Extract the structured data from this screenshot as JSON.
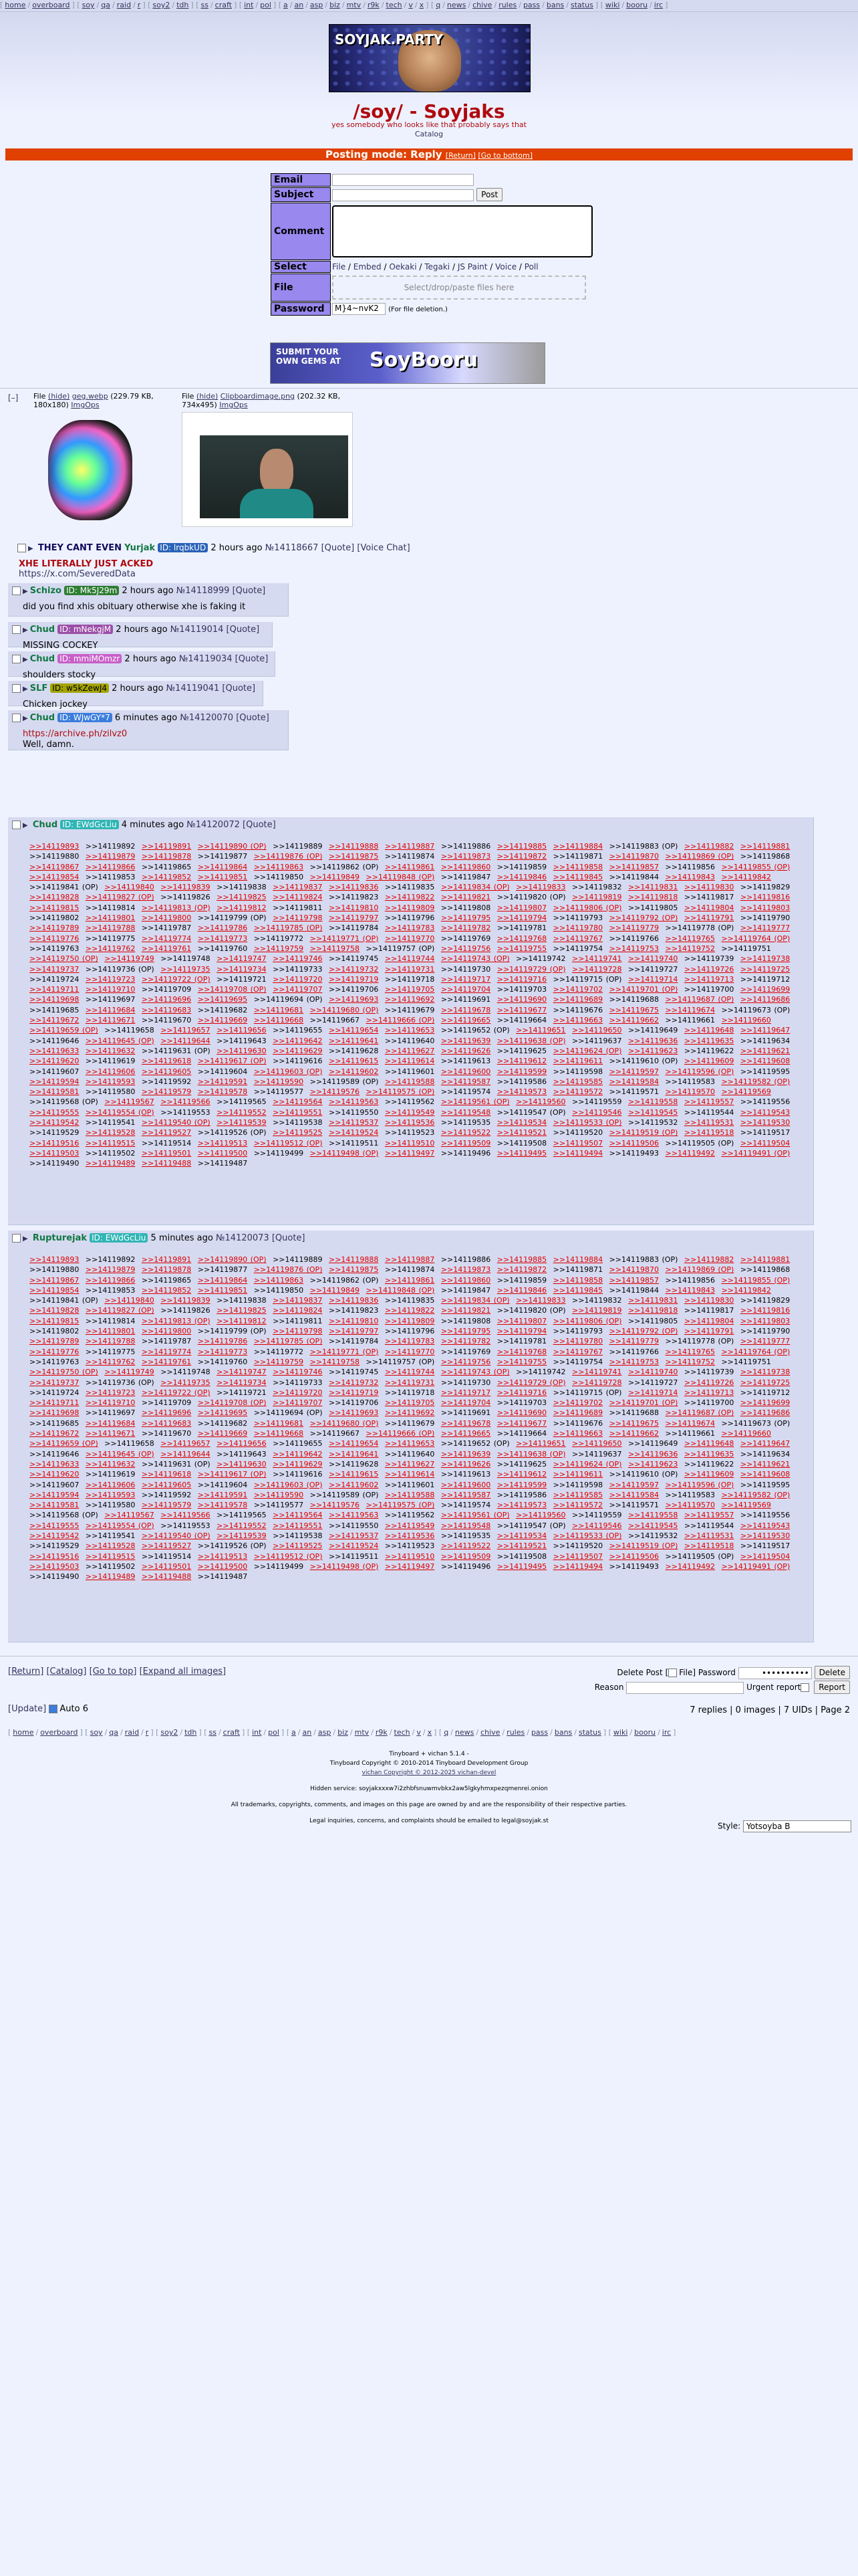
{
  "topbar": {
    "groups": [
      [
        "home",
        "overboard"
      ],
      [
        "soy",
        "qa",
        "raid",
        "r"
      ],
      [
        "soy2",
        "tdh"
      ],
      [
        "ss",
        "craft"
      ],
      [
        "int",
        "pol"
      ],
      [
        "a",
        "an",
        "asp",
        "biz",
        "mtv",
        "r9k",
        "tech",
        "v",
        "x"
      ],
      [
        "q",
        "news",
        "chive",
        "rules",
        "pass",
        "bans",
        "status"
      ],
      [
        "wiki",
        "booru",
        "irc"
      ]
    ]
  },
  "logo": {
    "text": "SOYJAK.PARTY"
  },
  "board": {
    "title": "/soy/ - Soyjaks",
    "subtitle": "yes somebody who looks like that probably says that",
    "catalog": "Catalog"
  },
  "postmode": {
    "label": "Posting mode: Reply",
    "return": "[Return]",
    "bottom": "[Go to bottom]"
  },
  "form": {
    "email_label": "Email",
    "subject_label": "Subject",
    "post_button": "Post",
    "comment_label": "Comment",
    "select_label": "Select",
    "select_options": [
      "File",
      "Embed",
      "Oekaki",
      "Tegaki",
      "JS Paint",
      "Voice",
      "Poll"
    ],
    "file_label": "File",
    "file_drop": "Select/drop/paste files here",
    "password_label": "Password",
    "password_value": "M}4~nvK2",
    "password_hint": "(For file deletion.)"
  },
  "banner": {
    "line1": "SUBMIT YOUR",
    "line2": "OWN GEMS AT",
    "brand": "SoyBooru"
  },
  "op": {
    "hide": "[–]",
    "file1": {
      "prefix": "File",
      "hide": "(hide)",
      "name": "geg.webp",
      "meta": "(229.79 KB, 180x180)",
      "search": "ImgOps"
    },
    "file2": {
      "prefix": "File",
      "hide": "(hide)",
      "name": "Clipboardimage.png",
      "meta": "(202.32 KB, 734x495)",
      "search": "ImgOps"
    },
    "subject": "THEY CANT EVEN",
    "name": "Yurjak",
    "uid": "ID: lrqbkUD",
    "time": "2 hours ago",
    "no": "№14118667",
    "quote": "[Quote]",
    "voice": "[Voice Chat]",
    "red": "XHE LITERALLY JUST ACKED",
    "link": "https://x.com/SeveredData"
  },
  "replies": [
    {
      "name": "Schizo",
      "uid": "ID: Mk5J29m",
      "uid_bg": "#2e7d32",
      "uid_fg": "#fff",
      "time": "2 hours ago",
      "no": "№14118999",
      "text": "did you find xhis obituary otherwise xhe is faking it"
    },
    {
      "name": "Chud",
      "uid": "ID: mNekgjM",
      "uid_bg": "#9c4ea8",
      "uid_fg": "#fff",
      "time": "2 hours ago",
      "no": "№14119014",
      "text": "MISSING COCKEY"
    },
    {
      "name": "Chud",
      "uid": "ID: mmiMOmzr",
      "uid_bg": "#c85fc8",
      "uid_fg": "#fff",
      "time": "2 hours ago",
      "no": "№14119034",
      "text": "shoulders stocky"
    },
    {
      "name": "SLF",
      "uid": "ID: w5kZewJ4",
      "uid_bg": "#a4a400",
      "uid_fg": "#000",
      "time": "2 hours ago",
      "no": "№14119041",
      "text": "Chicken jockey"
    },
    {
      "name": "Chud",
      "uid": "ID: WJwGY*7",
      "uid_bg": "#3b7ddd",
      "uid_fg": "#fff",
      "time": "6 minutes ago",
      "no": "№14120070",
      "link": "https://archive.ph/zilvz0",
      "text": "Well, damn."
    }
  ],
  "spam1": {
    "name": "Chud",
    "uid": "ID: EWdGcLiu",
    "time": "4 minutes ago",
    "no": "№14120072"
  },
  "spam2": {
    "name": "Rupturejak",
    "uid": "ID: EWdGcLiu",
    "time": "5 minutes ago",
    "no": "№14120073"
  },
  "quote_label": "[Quote]",
  "quote_start": 14119893,
  "quote_count": 407,
  "quote_op_tag": "(OP)",
  "bottom_nav": [
    "[Return]",
    "[Catalog]",
    "[Go to top]",
    "[Expand all images]"
  ],
  "delete": {
    "label": "Delete Post [",
    "file": "File] Password",
    "password_value": "••••••••••",
    "delete_button": "Delete",
    "reason_label": "Reason",
    "urgent": "Urgent report",
    "report_button": "Report"
  },
  "update": {
    "label": "[Update]",
    "auto": "Auto",
    "seconds": "6"
  },
  "stats": "7 replies | 0 images | 7 UIDs | Page 2",
  "footer": {
    "line1": "Tinyboard + vichan 5.1.4 -",
    "line2": "Tinyboard Copyright © 2010-2014 Tinyboard Development Group",
    "line3": "vichan Copyright © 2012-2025 vichan-devel",
    "line4": "Hidden service: soyjakxxxw7i2zhbfsnuwmvbkx2aw5lgkyhmxpezqmenrei.onion",
    "line5": "All trademarks, copyrights, comments, and images on this page are owned by and are the responsibility of their respective parties.",
    "line6": "Legal inquiries, concerns, and complaints should be emailed to legal@soyjak.st"
  },
  "style": {
    "label": "Style:",
    "value": "Yotsoyba B"
  },
  "colors": {
    "link": "#34345c",
    "red": "#af0a0f",
    "name": "#117743",
    "accent": "#e04000"
  }
}
